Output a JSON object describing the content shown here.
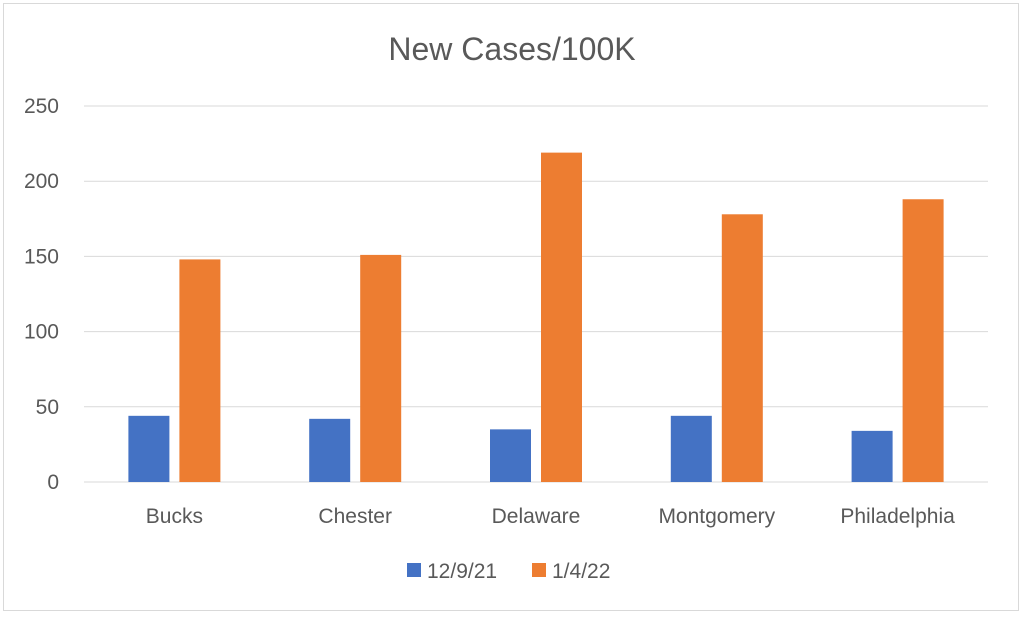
{
  "chart_data": {
    "type": "bar",
    "title": "New Cases/100K",
    "xlabel": "",
    "ylabel": "",
    "categories": [
      "Bucks",
      "Chester",
      "Delaware",
      "Montgomery",
      "Philadelphia"
    ],
    "series": [
      {
        "name": "12/9/21",
        "values": [
          44,
          42,
          35,
          44,
          34
        ],
        "color": "#4472c4"
      },
      {
        "name": "1/4/22",
        "values": [
          148,
          151,
          219,
          178,
          188
        ],
        "color": "#ed7d31"
      }
    ],
    "ylim": [
      0,
      250
    ],
    "yticks": [
      0,
      50,
      100,
      150,
      200,
      250
    ],
    "grid": true,
    "legend": "bottom"
  }
}
